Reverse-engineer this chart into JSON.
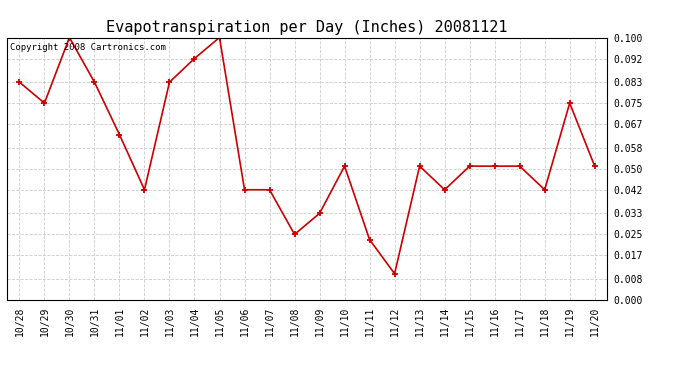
{
  "title": "Evapotranspiration per Day (Inches) 20081121",
  "copyright_text": "Copyright 2008 Cartronics.com",
  "x_labels": [
    "10/28",
    "10/29",
    "10/30",
    "10/31",
    "11/01",
    "11/02",
    "11/03",
    "11/04",
    "11/05",
    "11/06",
    "11/07",
    "11/08",
    "11/09",
    "11/10",
    "11/11",
    "11/12",
    "11/13",
    "11/14",
    "11/15",
    "11/16",
    "11/17",
    "11/18",
    "11/19",
    "11/20"
  ],
  "y_values": [
    0.083,
    0.075,
    0.1,
    0.083,
    0.063,
    0.042,
    0.083,
    0.092,
    0.1,
    0.042,
    0.042,
    0.025,
    0.033,
    0.051,
    0.023,
    0.01,
    0.051,
    0.042,
    0.051,
    0.051,
    0.051,
    0.042,
    0.075,
    0.051
  ],
  "line_color": "#cc0000",
  "marker": "+",
  "marker_size": 5,
  "line_width": 1.2,
  "background_color": "#ffffff",
  "grid_color": "#cccccc",
  "y_min": 0.0,
  "y_max": 0.1,
  "y_ticks": [
    0.0,
    0.008,
    0.017,
    0.025,
    0.033,
    0.042,
    0.05,
    0.058,
    0.067,
    0.075,
    0.083,
    0.092,
    0.1
  ],
  "title_fontsize": 11,
  "tick_fontsize": 7,
  "copyright_fontsize": 6.5
}
